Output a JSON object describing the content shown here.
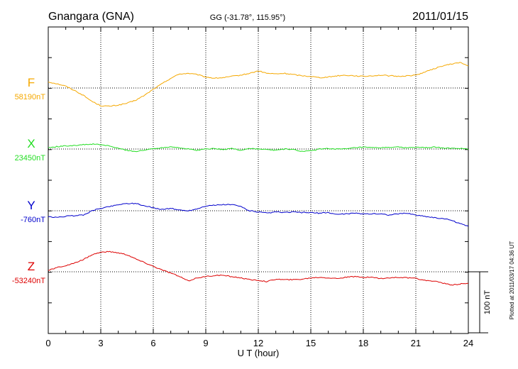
{
  "header": {
    "station": "Gnangara (GNA)",
    "coords": "GG (-31.78°, 115.95°)",
    "date": "2011/01/15"
  },
  "footer": {
    "plotted": "Plotted at 2011/03/17 04:36 UT"
  },
  "chart_data": {
    "type": "line",
    "title": "Gnangara (GNA)",
    "xlabel": "U T (hour)",
    "xlim": [
      0,
      24
    ],
    "xticks": [
      "0",
      "3",
      "6",
      "9",
      "12",
      "15",
      "18",
      "21",
      "24"
    ],
    "scale_bar": {
      "label": "100 nT",
      "value": 100
    },
    "grid": true,
    "series": [
      {
        "name": "F",
        "baseline_label": "58190nT",
        "baseline": 58190,
        "color": "#f5a800",
        "x": [
          0,
          0.5,
          1,
          1.5,
          2,
          2.5,
          3,
          3.5,
          4,
          4.5,
          5,
          5.5,
          6,
          6.5,
          7,
          7.5,
          8,
          8.5,
          9,
          9.5,
          10,
          10.5,
          11,
          11.5,
          12,
          12.5,
          13,
          13.5,
          14,
          14.5,
          15,
          15.5,
          16,
          16.5,
          17,
          17.5,
          18,
          18.5,
          19,
          19.5,
          20,
          20.5,
          21,
          21.5,
          22,
          22.5,
          23,
          23.5,
          24
        ],
        "y": [
          58200,
          58197,
          58193,
          58186,
          58178,
          58168,
          58161,
          58160,
          58162,
          58165,
          58170,
          58178,
          58188,
          58197,
          58206,
          58213,
          58214,
          58212,
          58208,
          58206,
          58207,
          58209,
          58211,
          58214,
          58218,
          58214,
          58213,
          58214,
          58212,
          58210,
          58209,
          58207,
          58208,
          58210,
          58211,
          58210,
          58209,
          58210,
          58211,
          58210,
          58209,
          58210,
          58211,
          58216,
          58221,
          58226,
          58229,
          58232,
          58226
        ]
      },
      {
        "name": "X",
        "baseline_label": "23450nT",
        "baseline": 23450,
        "color": "#22dd22",
        "x": [
          0,
          0.5,
          1,
          1.5,
          2,
          2.5,
          3,
          3.5,
          4,
          4.5,
          5,
          5.5,
          6,
          6.5,
          7,
          7.5,
          8,
          8.5,
          9,
          9.5,
          10,
          10.5,
          11,
          11.5,
          12,
          12.5,
          13,
          13.5,
          14,
          14.5,
          15,
          15.5,
          16,
          16.5,
          17,
          17.5,
          18,
          18.5,
          19,
          19.5,
          20,
          20.5,
          21,
          21.5,
          22,
          22.5,
          23,
          23.5,
          24
        ],
        "y": [
          23452,
          23454,
          23455,
          23456,
          23457,
          23458,
          23457,
          23455,
          23451,
          23448,
          23446,
          23448,
          23451,
          23452,
          23454,
          23452,
          23450,
          23448,
          23450,
          23451,
          23449,
          23451,
          23448,
          23451,
          23450,
          23449,
          23448,
          23450,
          23449,
          23446,
          23447,
          23450,
          23451,
          23450,
          23450,
          23452,
          23453,
          23452,
          23452,
          23453,
          23453,
          23452,
          23453,
          23452,
          23453,
          23452,
          23451,
          23451,
          23450
        ]
      },
      {
        "name": "Y",
        "baseline_label": "-760nT",
        "baseline": -760,
        "color": "#0000cc",
        "x": [
          0,
          0.5,
          1,
          1.5,
          2,
          2.5,
          3,
          3.5,
          4,
          4.5,
          5,
          5.5,
          6,
          6.5,
          7,
          7.5,
          8,
          8.5,
          9,
          9.5,
          10,
          10.5,
          11,
          11.5,
          12,
          12.5,
          13,
          13.5,
          14,
          14.5,
          15,
          15.5,
          16,
          16.5,
          17,
          17.5,
          18,
          18.5,
          19,
          19.5,
          20,
          20.5,
          21,
          21.5,
          22,
          22.5,
          23,
          23.5,
          24
        ],
        "y": [
          -770,
          -771,
          -769,
          -768,
          -767,
          -760,
          -756,
          -753,
          -750,
          -748,
          -748,
          -752,
          -755,
          -758,
          -756,
          -759,
          -760,
          -757,
          -752,
          -751,
          -750,
          -750,
          -753,
          -760,
          -762,
          -764,
          -762,
          -763,
          -762,
          -763,
          -763,
          -764,
          -763,
          -766,
          -765,
          -764,
          -765,
          -765,
          -765,
          -767,
          -765,
          -764,
          -767,
          -769,
          -771,
          -773,
          -775,
          -781,
          -785
        ]
      },
      {
        "name": "Z",
        "baseline_label": "-53240nT",
        "baseline": -53240,
        "color": "#dd0000",
        "x": [
          0,
          0.5,
          1,
          1.5,
          2,
          2.5,
          3,
          3.5,
          4,
          4.5,
          5,
          5.5,
          6,
          6.5,
          7,
          7.5,
          8,
          8.5,
          9,
          9.5,
          10,
          10.5,
          11,
          11.5,
          12,
          12.5,
          13,
          13.5,
          14,
          14.5,
          15,
          15.5,
          16,
          16.5,
          17,
          17.5,
          18,
          18.5,
          19,
          19.5,
          20,
          20.5,
          21,
          21.5,
          22,
          22.5,
          23,
          23.5,
          24
        ],
        "y": [
          -53238,
          -53233,
          -53230,
          -53226,
          -53220,
          -53212,
          -53208,
          -53207,
          -53209,
          -53212,
          -53219,
          -53225,
          -53231,
          -53237,
          -53242,
          -53248,
          -53255,
          -53250,
          -53248,
          -53246,
          -53246,
          -53248,
          -53250,
          -53253,
          -53254,
          -53256,
          -53252,
          -53253,
          -53253,
          -53252,
          -53250,
          -53249,
          -53250,
          -53251,
          -53249,
          -53248,
          -53249,
          -53249,
          -53251,
          -53250,
          -53249,
          -53250,
          -53251,
          -53254,
          -53255,
          -53258,
          -53262,
          -53260,
          -53259
        ]
      }
    ]
  }
}
